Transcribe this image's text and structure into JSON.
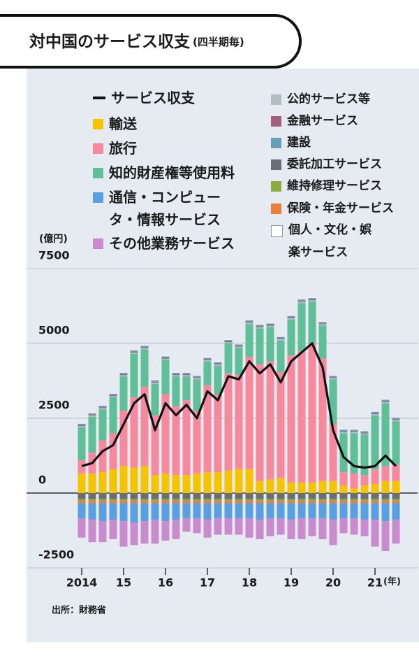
{
  "chart_data": {
    "type": "bar",
    "title": "対中国のサービス収支",
    "subtitle": "(四半期毎)",
    "ylabel": "(億円)",
    "xlabel": "(年)",
    "source": "出所：財務省",
    "categories": [
      "2014",
      null,
      null,
      null,
      "15",
      null,
      null,
      null,
      "16",
      null,
      null,
      null,
      "17",
      null,
      null,
      null,
      "18",
      null,
      null,
      null,
      "19",
      null,
      null,
      null,
      "20",
      null,
      null,
      null,
      "21",
      null,
      null
    ],
    "ylim": [
      -2500,
      7500
    ],
    "yticks": [
      -2500,
      0,
      2500,
      5000,
      7500
    ],
    "grid": true,
    "series": [
      {
        "name": "サービス収支",
        "type": "line",
        "color": "#111111",
        "values": [
          900,
          1000,
          1400,
          1600,
          2300,
          3000,
          3300,
          2100,
          3000,
          2600,
          2950,
          2500,
          3400,
          3100,
          3900,
          3800,
          4400,
          4000,
          4300,
          3700,
          4400,
          4700,
          5000,
          4200,
          2100,
          1200,
          900,
          850,
          900,
          1250,
          900
        ]
      },
      {
        "name": "輸送",
        "type": "bar",
        "color": "#f5c400",
        "values": [
          650,
          650,
          700,
          800,
          900,
          850,
          900,
          600,
          650,
          600,
          600,
          650,
          700,
          700,
          750,
          800,
          800,
          400,
          450,
          500,
          350,
          350,
          350,
          400,
          400,
          250,
          150,
          250,
          300,
          400,
          400
        ]
      },
      {
        "name": "旅行",
        "type": "bar",
        "color": "#f7899f",
        "values": [
          450,
          700,
          1050,
          1200,
          1850,
          2350,
          2650,
          2000,
          2650,
          2300,
          2500,
          2100,
          2900,
          2600,
          3250,
          3150,
          3750,
          3900,
          3950,
          3550,
          4250,
          4400,
          4650,
          4100,
          1900,
          450,
          500,
          350,
          500,
          500,
          550
        ]
      },
      {
        "name": "知的財産権等使用料",
        "type": "bar",
        "color": "#5ebf98",
        "values": [
          1100,
          1200,
          1050,
          1200,
          1150,
          1450,
          1250,
          1050,
          1150,
          1000,
          800,
          1050,
          800,
          950,
          1000,
          900,
          1100,
          1200,
          1150,
          1050,
          1200,
          1600,
          1400,
          1100,
          1500,
          1300,
          1350,
          1350,
          1800,
          2100,
          1450
        ]
      },
      {
        "name": "公的サービス等",
        "type": "bar",
        "color": "#b3bdc7",
        "values": [
          40,
          40,
          40,
          40,
          40,
          40,
          40,
          40,
          40,
          40,
          40,
          40,
          40,
          40,
          40,
          40,
          40,
          40,
          40,
          40,
          40,
          40,
          40,
          40,
          40,
          40,
          40,
          40,
          40,
          40,
          40
        ]
      },
      {
        "name": "金融サービス",
        "type": "bar",
        "color": "#a3607c",
        "values": [
          30,
          30,
          30,
          30,
          30,
          30,
          30,
          30,
          30,
          30,
          30,
          30,
          30,
          30,
          30,
          30,
          30,
          30,
          30,
          30,
          30,
          30,
          30,
          30,
          30,
          30,
          30,
          30,
          30,
          30,
          30
        ]
      },
      {
        "name": "建設",
        "type": "bar",
        "color": "#6a9fb8",
        "values": [
          50,
          50,
          50,
          50,
          50,
          50,
          50,
          50,
          50,
          50,
          50,
          50,
          50,
          50,
          50,
          50,
          50,
          50,
          50,
          50,
          50,
          50,
          50,
          50,
          50,
          50,
          50,
          50,
          50,
          50,
          50
        ]
      },
      {
        "name": "個人・文化・娯楽サービス",
        "type": "bar",
        "color": "#ffffff",
        "values": [
          20,
          20,
          20,
          20,
          20,
          20,
          20,
          20,
          20,
          20,
          20,
          20,
          20,
          20,
          20,
          20,
          20,
          20,
          20,
          20,
          20,
          20,
          20,
          20,
          20,
          20,
          20,
          20,
          20,
          20,
          20
        ]
      },
      {
        "name": "委託加工サービス",
        "type": "bar",
        "color": "#6a6e76",
        "values": [
          -200,
          -200,
          -200,
          -200,
          -200,
          -200,
          -200,
          -200,
          -200,
          -200,
          -200,
          -200,
          -200,
          -200,
          -200,
          -200,
          -200,
          -200,
          -200,
          -200,
          -200,
          -200,
          -200,
          -200,
          -200,
          -200,
          -200,
          -200,
          -200,
          -200,
          -200
        ]
      },
      {
        "name": "維持修理サービス",
        "type": "bar",
        "color": "#8aab3f",
        "values": [
          -60,
          -60,
          -60,
          -60,
          -60,
          -60,
          -60,
          -60,
          -60,
          -60,
          -60,
          -60,
          -60,
          -60,
          -60,
          -60,
          -60,
          -60,
          -60,
          -60,
          -60,
          -60,
          -60,
          -60,
          -60,
          -60,
          -60,
          -60,
          -60,
          -60,
          -60
        ]
      },
      {
        "name": "保険・年金サービス",
        "type": "bar",
        "color": "#e97f38",
        "values": [
          -80,
          -80,
          -80,
          -80,
          -80,
          -80,
          -80,
          -80,
          -80,
          -80,
          -80,
          -80,
          -80,
          -80,
          -80,
          -80,
          -80,
          -80,
          -80,
          -80,
          -80,
          -80,
          -80,
          -80,
          -80,
          -80,
          -80,
          -80,
          -80,
          -80,
          -80
        ]
      },
      {
        "name": "通信・コンピュータ・情報サービス",
        "type": "bar",
        "color": "#58a0e2",
        "values": [
          -500,
          -550,
          -600,
          -550,
          -600,
          -650,
          -600,
          -550,
          -600,
          -550,
          -500,
          -500,
          -550,
          -500,
          -500,
          -500,
          -500,
          -550,
          -500,
          -500,
          -550,
          -500,
          -500,
          -500,
          -550,
          -500,
          -500,
          -550,
          -550,
          -600,
          -550
        ]
      },
      {
        "name": "その他業務サービス",
        "type": "bar",
        "color": "#c98bcd",
        "values": [
          -650,
          -750,
          -700,
          -650,
          -850,
          -750,
          -750,
          -800,
          -650,
          -650,
          -450,
          -500,
          -600,
          -550,
          -550,
          -550,
          -650,
          -650,
          -600,
          -550,
          -650,
          -700,
          -600,
          -700,
          -850,
          -500,
          -550,
          -550,
          -900,
          -1000,
          -800
        ]
      }
    ]
  }
}
